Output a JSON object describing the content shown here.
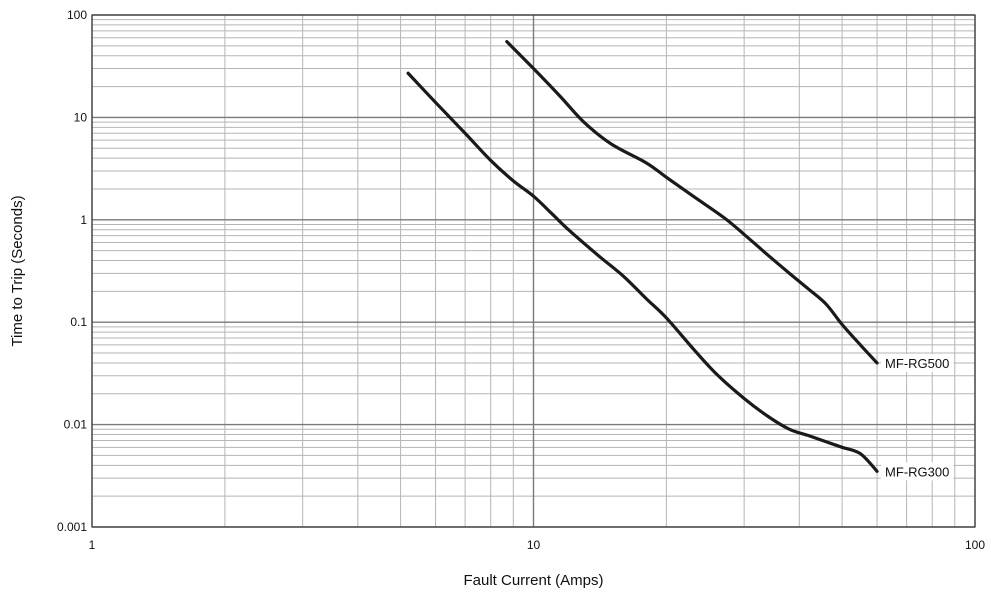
{
  "chart_data": {
    "type": "line",
    "title": "",
    "xlabel": "Fault Current (Amps)",
    "ylabel": "Time to Trip (Seconds)",
    "xscale": "log",
    "yscale": "log",
    "xlim": [
      1,
      100
    ],
    "ylim": [
      0.001,
      100
    ],
    "x_ticks": [
      1,
      10,
      100
    ],
    "x_tick_labels": [
      "1",
      "10",
      "100"
    ],
    "y_ticks": [
      0.001,
      0.01,
      0.1,
      1,
      10,
      100
    ],
    "y_tick_labels": [
      "0.001",
      "0.01",
      "0.1",
      "1",
      "10",
      "100"
    ],
    "grid": true,
    "legend": "none",
    "series": [
      {
        "name": "MF-RG500",
        "label_position": "end",
        "color": "#1a1a1a",
        "x": [
          8.7,
          10,
          11.5,
          13,
          15,
          18,
          20,
          23,
          27,
          30,
          34,
          38,
          42,
          46,
          50,
          55,
          60
        ],
        "y": [
          55,
          30,
          16,
          9,
          5.5,
          3.6,
          2.6,
          1.7,
          1.05,
          0.72,
          0.45,
          0.3,
          0.21,
          0.15,
          0.095,
          0.06,
          0.04
        ]
      },
      {
        "name": "MF-RG300",
        "label_position": "end",
        "color": "#1a1a1a",
        "x": [
          5.2,
          6,
          7,
          8,
          9,
          10,
          11,
          12,
          14,
          16,
          18,
          20,
          23,
          26,
          30,
          34,
          38,
          42,
          46,
          50,
          55,
          60
        ],
        "y": [
          27,
          14,
          7,
          3.8,
          2.4,
          1.7,
          1.15,
          0.8,
          0.45,
          0.28,
          0.17,
          0.11,
          0.055,
          0.031,
          0.018,
          0.012,
          0.009,
          0.0078,
          0.0068,
          0.006,
          0.0052,
          0.0035
        ]
      }
    ]
  }
}
